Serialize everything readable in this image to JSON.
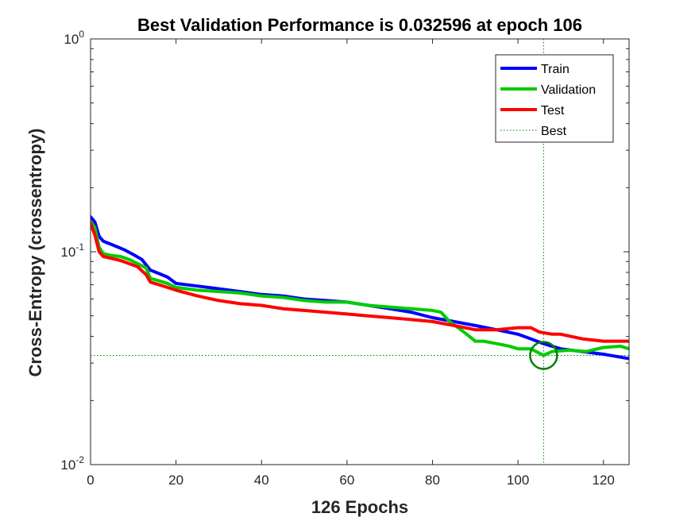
{
  "chart_data": {
    "type": "line",
    "title": "Best Validation Performance is 0.032596 at epoch 106",
    "xlabel": "126 Epochs",
    "ylabel": "Cross-Entropy  (crossentropy)",
    "xlim": [
      0,
      126
    ],
    "ylim": [
      0.01,
      1
    ],
    "y_scale": "log",
    "x_ticks": [
      0,
      20,
      40,
      60,
      80,
      100,
      120
    ],
    "y_ticks": [
      {
        "value": 0.01,
        "base": "10",
        "exp": "-2"
      },
      {
        "value": 0.1,
        "base": "10",
        "exp": "-1"
      },
      {
        "value": 1,
        "base": "10",
        "exp": "0"
      }
    ],
    "grid": false,
    "legend_position": "top-right",
    "series": [
      {
        "name": "Train",
        "color": "#0000ff",
        "points": [
          [
            0,
            0.146
          ],
          [
            1,
            0.138
          ],
          [
            2,
            0.118
          ],
          [
            3,
            0.112
          ],
          [
            5,
            0.108
          ],
          [
            8,
            0.102
          ],
          [
            10,
            0.097
          ],
          [
            12,
            0.092
          ],
          [
            14,
            0.082
          ],
          [
            16,
            0.079
          ],
          [
            18,
            0.076
          ],
          [
            20,
            0.071
          ],
          [
            25,
            0.069
          ],
          [
            30,
            0.067
          ],
          [
            35,
            0.065
          ],
          [
            40,
            0.063
          ],
          [
            45,
            0.062
          ],
          [
            50,
            0.06
          ],
          [
            55,
            0.059
          ],
          [
            60,
            0.058
          ],
          [
            65,
            0.056
          ],
          [
            70,
            0.054
          ],
          [
            75,
            0.052
          ],
          [
            80,
            0.049
          ],
          [
            85,
            0.047
          ],
          [
            90,
            0.045
          ],
          [
            95,
            0.043
          ],
          [
            100,
            0.041
          ],
          [
            103,
            0.039
          ],
          [
            106,
            0.037
          ],
          [
            110,
            0.035
          ],
          [
            115,
            0.034
          ],
          [
            120,
            0.033
          ],
          [
            126,
            0.0315
          ]
        ]
      },
      {
        "name": "Validation",
        "color": "#00cc00",
        "points": [
          [
            0,
            0.138
          ],
          [
            1,
            0.13
          ],
          [
            2,
            0.105
          ],
          [
            3,
            0.098
          ],
          [
            5,
            0.096
          ],
          [
            7,
            0.095
          ],
          [
            9,
            0.092
          ],
          [
            11,
            0.088
          ],
          [
            13,
            0.084
          ],
          [
            14,
            0.075
          ],
          [
            16,
            0.073
          ],
          [
            18,
            0.071
          ],
          [
            20,
            0.068
          ],
          [
            25,
            0.066
          ],
          [
            30,
            0.065
          ],
          [
            35,
            0.064
          ],
          [
            40,
            0.062
          ],
          [
            45,
            0.061
          ],
          [
            50,
            0.059
          ],
          [
            55,
            0.058
          ],
          [
            60,
            0.058
          ],
          [
            65,
            0.056
          ],
          [
            70,
            0.055
          ],
          [
            75,
            0.054
          ],
          [
            80,
            0.053
          ],
          [
            82,
            0.052
          ],
          [
            84,
            0.047
          ],
          [
            86,
            0.044
          ],
          [
            88,
            0.041
          ],
          [
            90,
            0.038
          ],
          [
            92,
            0.038
          ],
          [
            95,
            0.037
          ],
          [
            98,
            0.036
          ],
          [
            100,
            0.035
          ],
          [
            103,
            0.035
          ],
          [
            106,
            0.0326
          ],
          [
            108,
            0.034
          ],
          [
            112,
            0.0345
          ],
          [
            116,
            0.034
          ],
          [
            120,
            0.0355
          ],
          [
            124,
            0.036
          ],
          [
            126,
            0.035
          ]
        ]
      },
      {
        "name": "Test",
        "color": "#ff0000",
        "points": [
          [
            0,
            0.136
          ],
          [
            1,
            0.12
          ],
          [
            2,
            0.1
          ],
          [
            3,
            0.095
          ],
          [
            5,
            0.093
          ],
          [
            7,
            0.091
          ],
          [
            9,
            0.088
          ],
          [
            11,
            0.085
          ],
          [
            13,
            0.078
          ],
          [
            14,
            0.072
          ],
          [
            16,
            0.07
          ],
          [
            18,
            0.068
          ],
          [
            20,
            0.066
          ],
          [
            25,
            0.062
          ],
          [
            30,
            0.059
          ],
          [
            35,
            0.057
          ],
          [
            40,
            0.056
          ],
          [
            45,
            0.054
          ],
          [
            50,
            0.053
          ],
          [
            55,
            0.052
          ],
          [
            60,
            0.051
          ],
          [
            65,
            0.05
          ],
          [
            70,
            0.049
          ],
          [
            75,
            0.048
          ],
          [
            80,
            0.047
          ],
          [
            85,
            0.045
          ],
          [
            90,
            0.043
          ],
          [
            95,
            0.043
          ],
          [
            100,
            0.044
          ],
          [
            103,
            0.044
          ],
          [
            105,
            0.042
          ],
          [
            108,
            0.041
          ],
          [
            110,
            0.041
          ],
          [
            115,
            0.039
          ],
          [
            120,
            0.038
          ],
          [
            126,
            0.038
          ]
        ]
      }
    ],
    "best": {
      "name": "Best",
      "epoch": 106,
      "value": 0.032596,
      "color": "#008000"
    }
  }
}
